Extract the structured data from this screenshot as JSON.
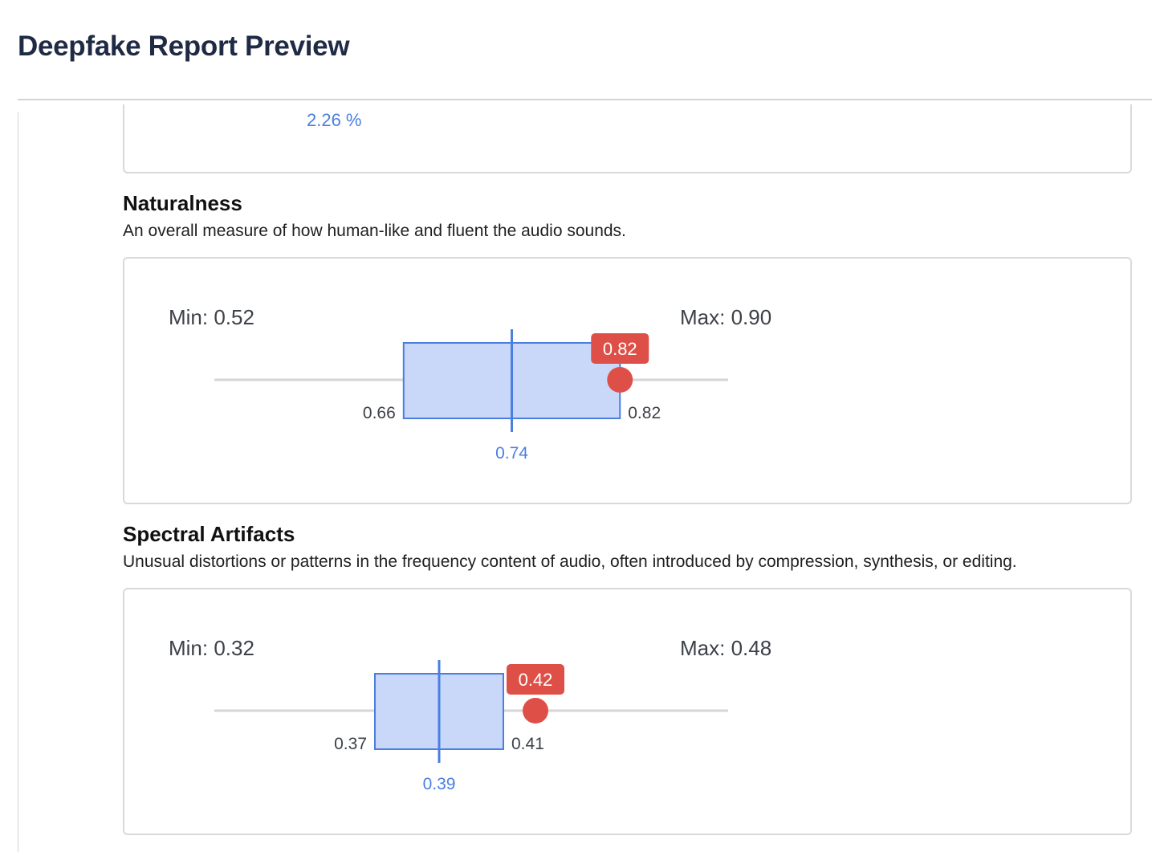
{
  "header": {
    "title": "Deepfake Report Preview"
  },
  "previous_metric": {
    "value_text": "2.26 %"
  },
  "colors": {
    "accent_blue": "#4a7fe0",
    "box_fill": "#c9d8f8",
    "marker_red": "#de5047",
    "track_gray": "#d6d6d6"
  },
  "metrics": [
    {
      "title": "Naturalness",
      "description": "An overall measure of how human-like and fluent the audio sounds.",
      "min_label": "Min: 0.52",
      "max_label": "Max: 0.90",
      "q1_label": "0.66",
      "q3_label": "0.82",
      "median_label": "0.74",
      "score_label": "0.82"
    },
    {
      "title": "Spectral Artifacts",
      "description": "Unusual distortions or patterns in the frequency content of audio, often introduced by compression, synthesis, or editing.",
      "min_label": "Min: 0.32",
      "max_label": "Max: 0.48",
      "q1_label": "0.37",
      "q3_label": "0.41",
      "median_label": "0.39",
      "score_label": "0.42"
    }
  ],
  "chart_data": [
    {
      "type": "boxplot",
      "title": "Naturalness",
      "min": 0.52,
      "max": 0.9,
      "q1": 0.66,
      "median": 0.74,
      "q3": 0.82,
      "score": 0.82
    },
    {
      "type": "boxplot",
      "title": "Spectral Artifacts",
      "min": 0.32,
      "max": 0.48,
      "q1": 0.37,
      "median": 0.39,
      "q3": 0.41,
      "score": 0.42
    }
  ]
}
